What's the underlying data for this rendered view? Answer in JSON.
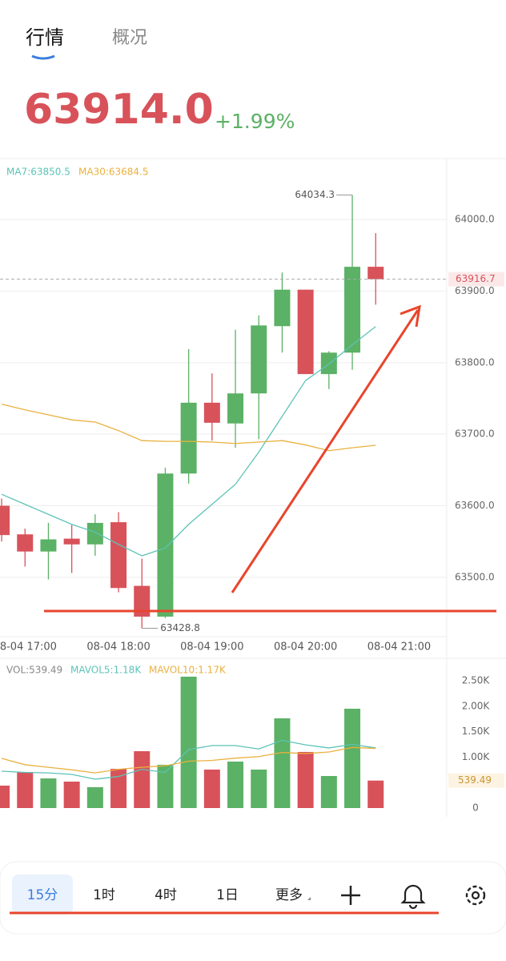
{
  "tabs": [
    "行情",
    "概况"
  ],
  "price": "63914.0",
  "change": "+1.99%",
  "chart_data": [
    {
      "type": "candlestick",
      "legend": [
        "MA7:63850.5",
        "MA30:63684.5"
      ],
      "open": [
        63600,
        63560,
        63536,
        63554,
        63546,
        63577,
        63488,
        63445,
        63645,
        63744,
        63715,
        63757,
        63851,
        63902,
        63784,
        63814,
        63934
      ],
      "high": [
        63610,
        63568,
        63576,
        63573,
        63588,
        63591,
        63526,
        63653,
        63819,
        63785,
        63846,
        63866,
        63926,
        63902,
        63816,
        64034.3,
        63981
      ],
      "low": [
        63550,
        63515,
        63497,
        63506,
        63530,
        63479,
        63428.8,
        63443,
        63631,
        63691,
        63681,
        63693,
        63814,
        63784,
        63763,
        63790,
        63881
      ],
      "close": [
        63559,
        63536,
        63553,
        63546,
        63576,
        63485,
        63445,
        63645,
        63744,
        63716,
        63757,
        63852,
        63902,
        63784,
        63814,
        63934,
        63916.7
      ],
      "up_color": "#5bb165",
      "down_color": "#d8525a",
      "lines": [
        {
          "color": "#5cc3b8",
          "values": [
            63616,
            63602,
            63588,
            63574,
            63563,
            63546,
            63530,
            63541,
            63574,
            63602,
            63630,
            63675,
            63725,
            63775,
            63798,
            63825,
            63850.5
          ]
        },
        {
          "color": "#e9b13f",
          "values": [
            63742,
            63734,
            63727,
            63720,
            63717,
            63705,
            63691,
            63690,
            63690,
            63689,
            63687,
            63689,
            63691,
            63685,
            63677,
            63681,
            63684.5
          ]
        }
      ],
      "xlim": [
        -0.07,
        19.04
      ],
      "xticks": [
        {
          "value": 1,
          "label": "08-04 17:00"
        },
        {
          "value": 5,
          "label": "08-04 18:00"
        },
        {
          "value": 9,
          "label": "08-04 19:00"
        },
        {
          "value": 13,
          "label": "08-04 20:00"
        },
        {
          "value": 17,
          "label": "08-04 21:00"
        }
      ],
      "ylim": [
        63417,
        64083
      ],
      "yticks": [
        {
          "value": 63500,
          "label": "63500.0"
        },
        {
          "value": 63600,
          "label": "63600.0"
        },
        {
          "value": 63700,
          "label": "63700.0"
        },
        {
          "value": 63800,
          "label": "63800.0"
        },
        {
          "value": 63900,
          "label": "63900.0"
        },
        {
          "value": 64000,
          "label": "64000.0"
        }
      ],
      "grid": true
    },
    {
      "type": "bar",
      "legend": [
        "VOL:539.49",
        "MAVOL5:1.18K",
        "MAVOL10:1.17K"
      ],
      "values": [
        440,
        708,
        582,
        519,
        409,
        770,
        1116,
        849,
        2579,
        755,
        912,
        755,
        1761,
        1101,
        629,
        1950,
        539.49
      ],
      "lines": [
        {
          "color": "#5cc3b8",
          "values": [
            723,
            700,
            690,
            660,
            566,
            620,
            760,
            700,
            1148,
            1226,
            1226,
            1160,
            1330,
            1240,
            1180,
            1250,
            1180
          ]
        },
        {
          "color": "#e9b13f",
          "values": [
            975,
            850,
            800,
            750,
            690,
            760,
            800,
            830,
            920,
            935,
            980,
            1010,
            1090,
            1070,
            1100,
            1190,
            1170
          ]
        }
      ],
      "xlim": [
        -0.07,
        19.04
      ],
      "ylim": [
        0,
        2940
      ],
      "yticks": [
        0,
        {
          "value": 1000,
          "label": "1.00K"
        },
        {
          "value": 1500,
          "label": "1.50K"
        },
        {
          "value": 2000,
          "label": "2.00K"
        },
        {
          "value": 2500,
          "label": "2.50K"
        }
      ],
      "grid": false
    }
  ],
  "toolbar": [
    "15分",
    "1时",
    "4时",
    "1日",
    "更多"
  ]
}
